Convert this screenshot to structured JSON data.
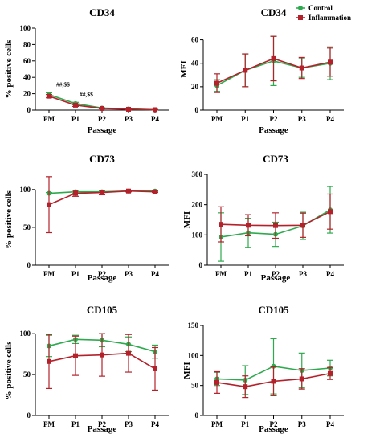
{
  "legend": [
    {
      "name": "Control",
      "color": "#2eaa4e",
      "marker": "circle"
    },
    {
      "name": "Inflammation",
      "color": "#b3212b",
      "marker": "square"
    }
  ],
  "chart_data": [
    {
      "type": "line",
      "title": "CD34",
      "xlabel": "Passage",
      "ylabel": "% positive cells",
      "categories": [
        "PM",
        "P1",
        "P2",
        "P3",
        "P4"
      ],
      "ylim": [
        0,
        100
      ],
      "yticks": [
        0,
        20,
        40,
        60,
        80,
        100
      ],
      "grid": false,
      "series": [
        {
          "name": "Control",
          "values": [
            19,
            8,
            2.5,
            1.5,
            0.5
          ],
          "errors": [
            2,
            1.5,
            0.5,
            0.5,
            0.3
          ]
        },
        {
          "name": "Inflammation",
          "values": [
            17,
            6,
            2,
            1,
            0.5
          ],
          "errors": [
            2,
            1.5,
            0.5,
            0.5,
            0.3
          ]
        }
      ],
      "annotations": [
        {
          "text": "##,$$",
          "category": "PM"
        },
        {
          "text": "##,$$",
          "category": "P1"
        }
      ]
    },
    {
      "type": "line",
      "title": "CD34",
      "xlabel": "Passage",
      "ylabel": "MFI",
      "categories": [
        "PM",
        "P1",
        "P2",
        "P3",
        "P4"
      ],
      "ylim": [
        0,
        70
      ],
      "yticks": [
        0,
        20,
        40,
        60
      ],
      "grid": false,
      "series": [
        {
          "name": "Control",
          "values": [
            21,
            34,
            42,
            36,
            40
          ],
          "errors": [
            5,
            14,
            21,
            8,
            14
          ]
        },
        {
          "name": "Inflammation",
          "values": [
            23,
            34,
            44,
            36,
            41
          ],
          "errors": [
            8,
            14,
            19,
            9,
            12
          ]
        }
      ],
      "legend_position": "top-right"
    },
    {
      "type": "line",
      "title": "CD73",
      "xlabel": "Passage",
      "ylabel": "% positive cells",
      "categories": [
        "PM",
        "P1",
        "P2",
        "P3",
        "P4"
      ],
      "ylim": [
        0,
        120
      ],
      "yticks": [
        0,
        50,
        100
      ],
      "grid": false,
      "series": [
        {
          "name": "Control",
          "values": [
            95,
            97,
            97,
            98,
            98
          ],
          "errors": [
            1,
            2,
            1,
            1,
            1
          ]
        },
        {
          "name": "Inflammation",
          "values": [
            80,
            95,
            96,
            98,
            97
          ],
          "errors": [
            37,
            4,
            3,
            1,
            1
          ]
        }
      ]
    },
    {
      "type": "line",
      "title": "CD73",
      "xlabel": "Passage",
      "ylabel": "MFI",
      "categories": [
        "PM",
        "P1",
        "P2",
        "P3",
        "P4"
      ],
      "ylim": [
        0,
        300
      ],
      "yticks": [
        0,
        100,
        200,
        300
      ],
      "grid": false,
      "series": [
        {
          "name": "Control",
          "values": [
            93,
            107,
            102,
            130,
            183
          ],
          "errors": [
            80,
            48,
            40,
            45,
            77
          ]
        },
        {
          "name": "Inflammation",
          "values": [
            135,
            132,
            131,
            132,
            177
          ],
          "errors": [
            58,
            35,
            42,
            40,
            58
          ]
        }
      ]
    },
    {
      "type": "line",
      "title": "CD105",
      "xlabel": "Passage",
      "ylabel": "% positive cells",
      "categories": [
        "PM",
        "P1",
        "P2",
        "P3",
        "P4"
      ],
      "ylim": [
        0,
        110
      ],
      "yticks": [
        0,
        50,
        100
      ],
      "grid": false,
      "series": [
        {
          "name": "Control",
          "values": [
            85,
            93,
            92,
            87,
            78
          ],
          "errors": [
            13,
            5,
            8,
            9,
            8
          ]
        },
        {
          "name": "Inflammation",
          "values": [
            66,
            73,
            74,
            76,
            57
          ],
          "errors": [
            33,
            24,
            26,
            23,
            26
          ]
        }
      ]
    },
    {
      "type": "line",
      "title": "CD105",
      "xlabel": "Passage",
      "ylabel": "MFI",
      "categories": [
        "PM",
        "P1",
        "P2",
        "P3",
        "P4"
      ],
      "ylim": [
        0,
        150
      ],
      "yticks": [
        0,
        50,
        100,
        150
      ],
      "grid": false,
      "series": [
        {
          "name": "Control",
          "values": [
            61,
            59,
            82,
            75,
            79
          ],
          "errors": [
            11,
            24,
            46,
            29,
            13
          ]
        },
        {
          "name": "Inflammation",
          "values": [
            55,
            48,
            57,
            61,
            70
          ],
          "errors": [
            18,
            18,
            24,
            17,
            10
          ]
        }
      ]
    }
  ]
}
